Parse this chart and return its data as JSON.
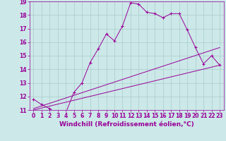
{
  "line1_x": [
    0,
    1,
    2,
    3,
    4,
    5,
    6,
    7,
    8,
    9,
    10,
    11,
    12,
    13,
    14,
    15,
    16,
    17,
    18,
    19,
    20,
    21,
    22,
    23
  ],
  "line1_y": [
    11.8,
    11.4,
    11.1,
    10.7,
    10.8,
    12.3,
    13.0,
    14.5,
    15.5,
    16.6,
    16.1,
    17.2,
    18.9,
    18.8,
    18.2,
    18.1,
    17.8,
    18.1,
    18.1,
    16.9,
    15.6,
    14.4,
    15.0,
    14.3
  ],
  "line2_x": [
    0,
    23
  ],
  "line2_y": [
    11.1,
    15.6
  ],
  "line3_x": [
    0,
    23
  ],
  "line3_y": [
    11.0,
    14.3
  ],
  "color": "#990099",
  "bg_color": "#cce8e8",
  "grid_color": "#aacccc",
  "xlabel": "Windchill (Refroidissement éolien,°C)",
  "xlim": [
    -0.5,
    23.5
  ],
  "ylim": [
    11,
    19
  ],
  "xticks": [
    0,
    1,
    2,
    3,
    4,
    5,
    6,
    7,
    8,
    9,
    10,
    11,
    12,
    13,
    14,
    15,
    16,
    17,
    18,
    19,
    20,
    21,
    22,
    23
  ],
  "yticks": [
    11,
    12,
    13,
    14,
    15,
    16,
    17,
    18,
    19
  ],
  "tick_fontsize": 5.5,
  "xlabel_fontsize": 6.5
}
